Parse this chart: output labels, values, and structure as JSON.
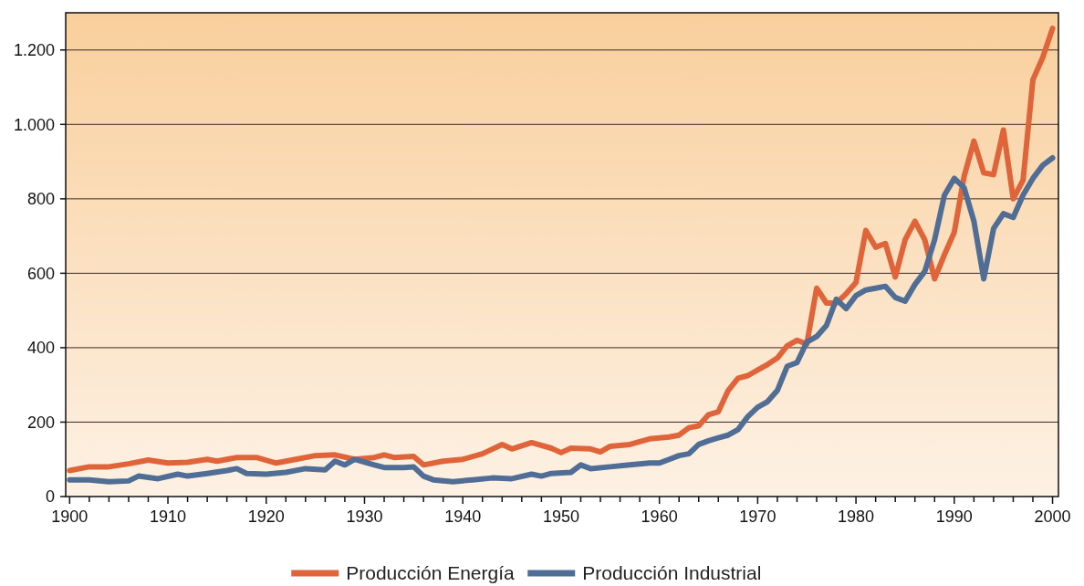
{
  "chart_data": {
    "type": "line",
    "xlim": [
      1899.6,
      2000.6
    ],
    "ylim": [
      0,
      1300
    ],
    "xticks": [
      1900,
      {
        "value": 1902,
        "label": null
      },
      {
        "value": 1904,
        "label": null
      },
      {
        "value": 1906,
        "label": null
      },
      {
        "value": 1908,
        "label": null
      },
      1910,
      {
        "value": 1912,
        "label": null
      },
      {
        "value": 1914,
        "label": null
      },
      {
        "value": 1916,
        "label": null
      },
      {
        "value": 1918,
        "label": null
      },
      1920,
      {
        "value": 1922,
        "label": null
      },
      {
        "value": 1924,
        "label": null
      },
      {
        "value": 1926,
        "label": null
      },
      {
        "value": 1928,
        "label": null
      },
      1930,
      {
        "value": 1932,
        "label": null
      },
      {
        "value": 1934,
        "label": null
      },
      {
        "value": 1936,
        "label": null
      },
      {
        "value": 1938,
        "label": null
      },
      1940,
      {
        "value": 1942,
        "label": null
      },
      {
        "value": 1944,
        "label": null
      },
      {
        "value": 1946,
        "label": null
      },
      {
        "value": 1948,
        "label": null
      },
      1950,
      {
        "value": 1952,
        "label": null
      },
      {
        "value": 1954,
        "label": null
      },
      {
        "value": 1956,
        "label": null
      },
      {
        "value": 1958,
        "label": null
      },
      1960,
      {
        "value": 1962,
        "label": null
      },
      {
        "value": 1964,
        "label": null
      },
      {
        "value": 1966,
        "label": null
      },
      {
        "value": 1968,
        "label": null
      },
      1970,
      {
        "value": 1972,
        "label": null
      },
      {
        "value": 1974,
        "label": null
      },
      {
        "value": 1976,
        "label": null
      },
      {
        "value": 1978,
        "label": null
      },
      1980,
      {
        "value": 1982,
        "label": null
      },
      {
        "value": 1984,
        "label": null
      },
      {
        "value": 1986,
        "label": null
      },
      {
        "value": 1988,
        "label": null
      },
      1990,
      {
        "value": 1992,
        "label": null
      },
      {
        "value": 1994,
        "label": null
      },
      {
        "value": 1996,
        "label": null
      },
      {
        "value": 1998,
        "label": null
      },
      2000
    ],
    "yticks": [
      0,
      200,
      400,
      600,
      800,
      {
        "value": 1000,
        "label": "1.000"
      },
      {
        "value": 1200,
        "label": "1.200"
      }
    ],
    "grid": "y",
    "legend": "bottom",
    "marker": "none",
    "line_style": "solid",
    "series": [
      {
        "name": "Producción Energía",
        "color": "#e0643a",
        "x": [
          1900,
          1902,
          1904,
          1906,
          1908,
          1910,
          1912,
          1914,
          1915,
          1917,
          1919,
          1921,
          1923,
          1925,
          1927,
          1929,
          1931,
          1932,
          1933,
          1935,
          1936,
          1938,
          1940,
          1942,
          1944,
          1945,
          1947,
          1949,
          1950,
          1951,
          1953,
          1954,
          1955,
          1957,
          1959,
          1961,
          1962,
          1963,
          1964,
          1965,
          1966,
          1967,
          1968,
          1969,
          1970,
          1971,
          1972,
          1973,
          1974,
          1975,
          1976,
          1977,
          1978,
          1979,
          1980,
          1981,
          1982,
          1983,
          1984,
          1985,
          1986,
          1987,
          1988,
          1989,
          1990,
          1991,
          1992,
          1993,
          1994,
          1995,
          1996,
          1997,
          1998,
          1999,
          2000
        ],
        "values": [
          70,
          80,
          80,
          88,
          98,
          90,
          92,
          100,
          95,
          105,
          105,
          90,
          100,
          110,
          112,
          100,
          105,
          112,
          105,
          108,
          85,
          95,
          100,
          115,
          140,
          128,
          145,
          130,
          118,
          130,
          128,
          120,
          135,
          140,
          155,
          160,
          165,
          185,
          190,
          220,
          228,
          285,
          318,
          325,
          340,
          355,
          372,
          405,
          420,
          410,
          560,
          520,
          520,
          545,
          575,
          715,
          670,
          680,
          590,
          690,
          740,
          690,
          585,
          650,
          710,
          860,
          955,
          870,
          865,
          985,
          800,
          850,
          1120,
          1180,
          1258
        ]
      },
      {
        "name": "Producción Industrial",
        "color": "#4f6d95",
        "x": [
          1900,
          1902,
          1904,
          1906,
          1907,
          1909,
          1911,
          1912,
          1914,
          1916,
          1917,
          1918,
          1920,
          1922,
          1924,
          1926,
          1927,
          1928,
          1929,
          1931,
          1932,
          1934,
          1935,
          1936,
          1937,
          1939,
          1941,
          1943,
          1945,
          1947,
          1948,
          1949,
          1951,
          1952,
          1953,
          1955,
          1957,
          1959,
          1960,
          1961,
          1962,
          1963,
          1964,
          1965,
          1966,
          1967,
          1968,
          1969,
          1970,
          1971,
          1972,
          1973,
          1974,
          1975,
          1976,
          1977,
          1978,
          1979,
          1980,
          1981,
          1982,
          1983,
          1984,
          1985,
          1986,
          1987,
          1988,
          1989,
          1990,
          1991,
          1992,
          1993,
          1994,
          1995,
          1996,
          1997,
          1998,
          1999,
          2000
        ],
        "values": [
          45,
          45,
          40,
          42,
          55,
          48,
          60,
          55,
          62,
          70,
          75,
          62,
          60,
          65,
          75,
          72,
          95,
          85,
          100,
          85,
          78,
          78,
          80,
          55,
          45,
          40,
          45,
          50,
          48,
          60,
          55,
          62,
          65,
          85,
          75,
          80,
          85,
          90,
          90,
          100,
          110,
          115,
          140,
          150,
          158,
          165,
          180,
          215,
          240,
          255,
          285,
          350,
          360,
          415,
          430,
          460,
          530,
          505,
          540,
          555,
          560,
          565,
          535,
          525,
          570,
          605,
          690,
          810,
          855,
          830,
          740,
          585,
          720,
          760,
          750,
          810,
          855,
          890,
          910
        ]
      }
    ]
  }
}
